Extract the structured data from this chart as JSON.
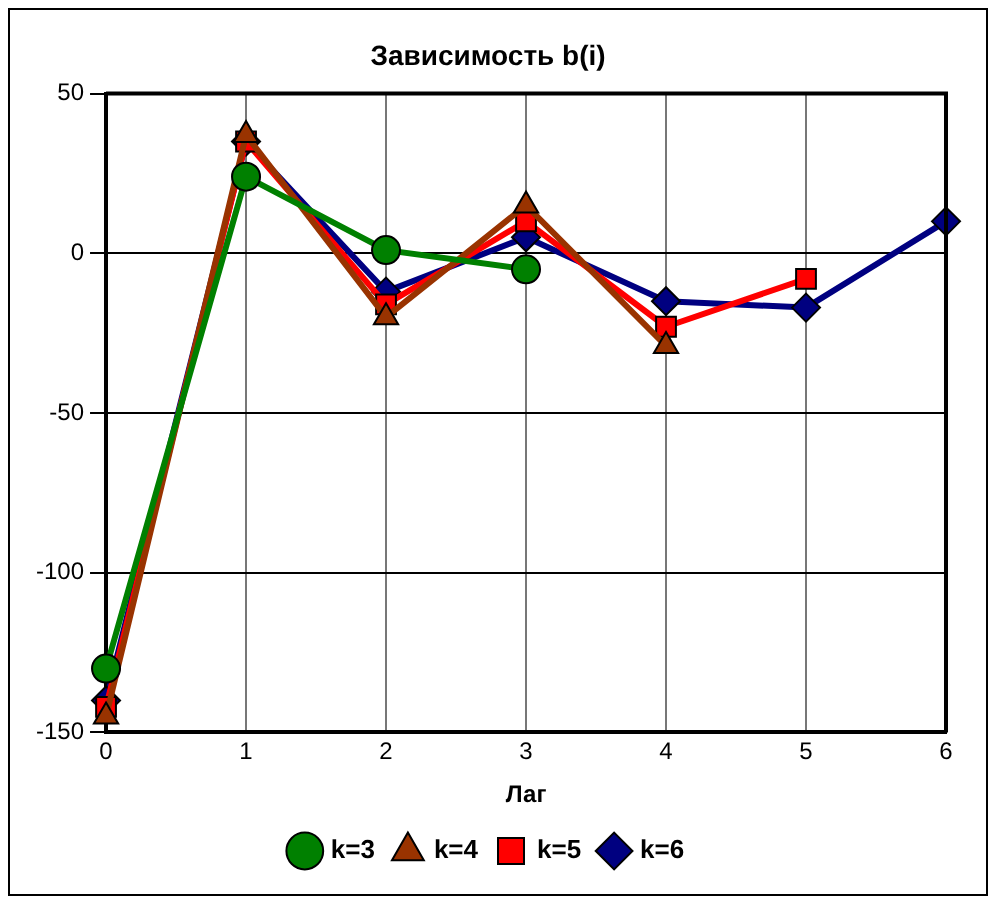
{
  "chart_data": {
    "type": "line",
    "title": "Зависимость b(i)",
    "xlabel": "Лаг",
    "x": [
      0,
      1,
      2,
      3,
      4,
      5,
      6
    ],
    "xlim": [
      0,
      6
    ],
    "xticks": [
      0,
      1,
      2,
      3,
      4,
      5,
      6
    ],
    "ylim": [
      -150,
      50
    ],
    "yticks": [
      -150,
      -100,
      -50,
      0,
      50
    ],
    "grid": true,
    "legend": "bottom",
    "line_style": "solid",
    "series": [
      {
        "name": "k=6",
        "color": "#000080",
        "marker": "diamond",
        "values": [
          -140,
          35,
          -12,
          5,
          -15,
          -17,
          10
        ]
      },
      {
        "name": "k=5",
        "color": "#ff0000",
        "marker": "square",
        "values": [
          -142,
          35,
          -16,
          10,
          -23,
          -8,
          null
        ]
      },
      {
        "name": "k=4",
        "color": "#993300",
        "marker": "triangle",
        "values": [
          -145,
          37,
          -20,
          15,
          -29,
          null,
          null
        ]
      },
      {
        "name": "k=3",
        "color": "#008000",
        "marker": "circle",
        "values": [
          -130,
          24,
          1,
          -5,
          null,
          null,
          null
        ]
      }
    ]
  }
}
